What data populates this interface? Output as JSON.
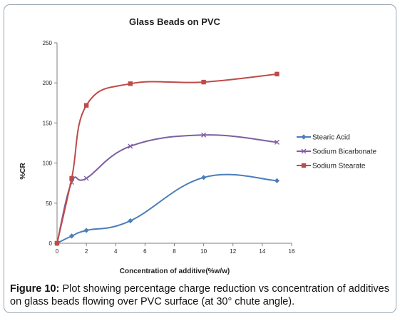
{
  "chart_data": {
    "type": "line",
    "title": "Glass Beads on PVC",
    "xlabel": "Concentration of additive(%w/w)",
    "ylabel": "%CR",
    "xlim": [
      0,
      16
    ],
    "ylim": [
      0,
      250
    ],
    "x_ticks": [
      "0",
      "2",
      "4",
      "6",
      "8",
      "10",
      "12",
      "14",
      "16"
    ],
    "y_ticks": [
      "0",
      "50",
      "100",
      "150",
      "200",
      "250"
    ],
    "legend_position": "right",
    "grid": false,
    "series": [
      {
        "name": "Stearic Acid",
        "color": "#4a7ebb",
        "marker": "diamond",
        "points": [
          [
            0,
            0
          ],
          [
            1,
            9
          ],
          [
            2,
            16
          ],
          [
            5,
            28
          ],
          [
            10,
            82
          ],
          [
            15,
            78
          ]
        ]
      },
      {
        "name": "Sodium Bicarbonate",
        "color": "#7d5fa0",
        "marker": "x",
        "points": [
          [
            0,
            0
          ],
          [
            1,
            76
          ],
          [
            2,
            81
          ],
          [
            5,
            121
          ],
          [
            10,
            135
          ],
          [
            15,
            126
          ]
        ]
      },
      {
        "name": "Sodium Stearate",
        "color": "#be4b48",
        "marker": "square",
        "points": [
          [
            0,
            0
          ],
          [
            1,
            81
          ],
          [
            2,
            172
          ],
          [
            5,
            199
          ],
          [
            10,
            201
          ],
          [
            15,
            211
          ]
        ]
      }
    ]
  },
  "caption": {
    "label": "Figure 10:",
    "text": " Plot showing percentage charge reduction vs concentration of additives on glass beads flowing over PVC surface (at 30° chute angle)."
  }
}
